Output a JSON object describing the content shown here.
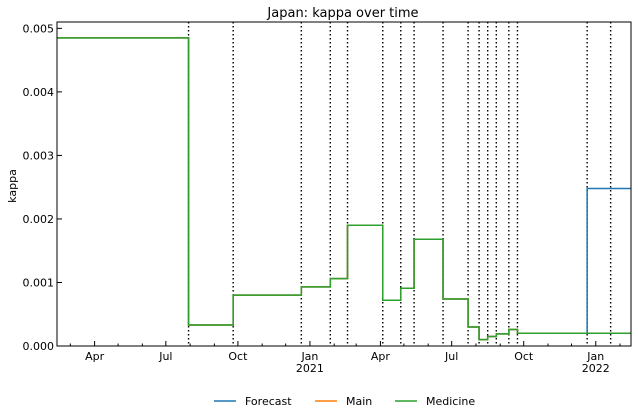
{
  "chart_data": {
    "type": "line",
    "title": "Japan: kappa over time",
    "xlabel": "",
    "ylabel": "kappa",
    "x_range": [
      "2020-02-13",
      "2022-02-15"
    ],
    "ylim": [
      0,
      0.0051
    ],
    "y_ticks": [
      {
        "value": 0,
        "label": "0.000"
      },
      {
        "value": 0.001,
        "label": "0.001"
      },
      {
        "value": 0.002,
        "label": "0.002"
      },
      {
        "value": 0.003,
        "label": "0.003"
      },
      {
        "value": 0.004,
        "label": "0.004"
      },
      {
        "value": 0.005,
        "label": "0.005"
      }
    ],
    "x_ticks": [
      {
        "date": "2020-04-01",
        "label": "Apr",
        "sub": ""
      },
      {
        "date": "2020-07-01",
        "label": "Jul",
        "sub": ""
      },
      {
        "date": "2020-10-01",
        "label": "Oct",
        "sub": ""
      },
      {
        "date": "2021-01-01",
        "label": "Jan",
        "sub": "2021"
      },
      {
        "date": "2021-04-01",
        "label": "Apr",
        "sub": ""
      },
      {
        "date": "2021-07-01",
        "label": "Jul",
        "sub": ""
      },
      {
        "date": "2021-10-01",
        "label": "Oct",
        "sub": ""
      },
      {
        "date": "2022-01-01",
        "label": "Jan",
        "sub": "2022"
      }
    ],
    "change_points": [
      "2020-07-30",
      "2020-09-25",
      "2020-12-21",
      "2021-01-27",
      "2021-02-18",
      "2021-04-04",
      "2021-04-27",
      "2021-05-14",
      "2021-06-20",
      "2021-07-22",
      "2021-08-05",
      "2021-08-16",
      "2021-08-27",
      "2021-09-12",
      "2021-09-23",
      "2021-12-21",
      "2022-01-20"
    ],
    "legend_position": "bottom",
    "series": [
      {
        "name": "Forecast",
        "color": "#1f77b4",
        "points": [
          [
            "2020-02-13",
            0.00485
          ],
          [
            "2020-07-30",
            0.00485
          ],
          [
            "2020-07-30",
            0.00033
          ],
          [
            "2020-09-25",
            0.00033
          ],
          [
            "2020-09-25",
            0.0008
          ],
          [
            "2020-12-21",
            0.0008
          ],
          [
            "2020-12-21",
            0.00093
          ],
          [
            "2021-01-27",
            0.00093
          ],
          [
            "2021-01-27",
            0.00106
          ],
          [
            "2021-02-18",
            0.00106
          ],
          [
            "2021-02-18",
            0.0019
          ],
          [
            "2021-04-04",
            0.0019
          ],
          [
            "2021-04-04",
            0.00072
          ],
          [
            "2021-04-27",
            0.00072
          ],
          [
            "2021-04-27",
            0.00091
          ],
          [
            "2021-05-14",
            0.00091
          ],
          [
            "2021-05-14",
            0.00168
          ],
          [
            "2021-06-20",
            0.00168
          ],
          [
            "2021-06-20",
            0.00074
          ],
          [
            "2021-07-22",
            0.00074
          ],
          [
            "2021-07-22",
            0.0003
          ],
          [
            "2021-08-05",
            0.0003
          ],
          [
            "2021-08-05",
            0.0001
          ],
          [
            "2021-08-16",
            0.0001
          ],
          [
            "2021-08-16",
            0.00015
          ],
          [
            "2021-08-27",
            0.00015
          ],
          [
            "2021-08-27",
            0.00019
          ],
          [
            "2021-09-12",
            0.00019
          ],
          [
            "2021-09-12",
            0.00026
          ],
          [
            "2021-09-23",
            0.00026
          ],
          [
            "2021-09-23",
            0.0002
          ],
          [
            "2021-12-21",
            0.0002
          ],
          [
            "2021-12-21",
            0.00248
          ],
          [
            "2022-02-15",
            0.00248
          ]
        ]
      },
      {
        "name": "Main",
        "color": "#ff7f0e",
        "points": [
          [
            "2020-02-13",
            0.00485
          ],
          [
            "2020-07-30",
            0.00485
          ],
          [
            "2020-07-30",
            0.00033
          ],
          [
            "2020-09-25",
            0.00033
          ],
          [
            "2020-09-25",
            0.0008
          ],
          [
            "2020-12-21",
            0.0008
          ],
          [
            "2020-12-21",
            0.00093
          ],
          [
            "2021-01-27",
            0.00093
          ],
          [
            "2021-01-27",
            0.00106
          ],
          [
            "2021-02-18",
            0.00106
          ],
          [
            "2021-02-18",
            0.0019
          ],
          [
            "2021-04-04",
            0.0019
          ],
          [
            "2021-04-04",
            0.00072
          ],
          [
            "2021-04-27",
            0.00072
          ],
          [
            "2021-04-27",
            0.00091
          ],
          [
            "2021-05-14",
            0.00091
          ],
          [
            "2021-05-14",
            0.00168
          ],
          [
            "2021-06-20",
            0.00168
          ],
          [
            "2021-06-20",
            0.00074
          ],
          [
            "2021-07-22",
            0.00074
          ],
          [
            "2021-07-22",
            0.0003
          ],
          [
            "2021-08-05",
            0.0003
          ],
          [
            "2021-08-05",
            0.0001
          ],
          [
            "2021-08-16",
            0.0001
          ],
          [
            "2021-08-16",
            0.00015
          ],
          [
            "2021-08-27",
            0.00015
          ],
          [
            "2021-08-27",
            0.00019
          ],
          [
            "2021-09-12",
            0.00019
          ],
          [
            "2021-09-12",
            0.00026
          ],
          [
            "2021-09-23",
            0.00026
          ],
          [
            "2021-09-23",
            0.0002
          ],
          [
            "2022-02-15",
            0.0002
          ]
        ]
      },
      {
        "name": "Medicine",
        "color": "#2ca02c",
        "points": [
          [
            "2020-02-13",
            0.00485
          ],
          [
            "2020-07-30",
            0.00485
          ],
          [
            "2020-07-30",
            0.00033
          ],
          [
            "2020-09-25",
            0.00033
          ],
          [
            "2020-09-25",
            0.0008
          ],
          [
            "2020-12-21",
            0.0008
          ],
          [
            "2020-12-21",
            0.00093
          ],
          [
            "2021-01-27",
            0.00093
          ],
          [
            "2021-01-27",
            0.00106
          ],
          [
            "2021-02-18",
            0.00106
          ],
          [
            "2021-02-18",
            0.0019
          ],
          [
            "2021-04-04",
            0.0019
          ],
          [
            "2021-04-04",
            0.00072
          ],
          [
            "2021-04-27",
            0.00072
          ],
          [
            "2021-04-27",
            0.00091
          ],
          [
            "2021-05-14",
            0.00091
          ],
          [
            "2021-05-14",
            0.00168
          ],
          [
            "2021-06-20",
            0.00168
          ],
          [
            "2021-06-20",
            0.00074
          ],
          [
            "2021-07-22",
            0.00074
          ],
          [
            "2021-07-22",
            0.0003
          ],
          [
            "2021-08-05",
            0.0003
          ],
          [
            "2021-08-05",
            0.0001
          ],
          [
            "2021-08-16",
            0.0001
          ],
          [
            "2021-08-16",
            0.00015
          ],
          [
            "2021-08-27",
            0.00015
          ],
          [
            "2021-08-27",
            0.00019
          ],
          [
            "2021-09-12",
            0.00019
          ],
          [
            "2021-09-12",
            0.00026
          ],
          [
            "2021-09-23",
            0.00026
          ],
          [
            "2021-09-23",
            0.0002
          ],
          [
            "2022-02-15",
            0.0002
          ]
        ]
      }
    ]
  }
}
